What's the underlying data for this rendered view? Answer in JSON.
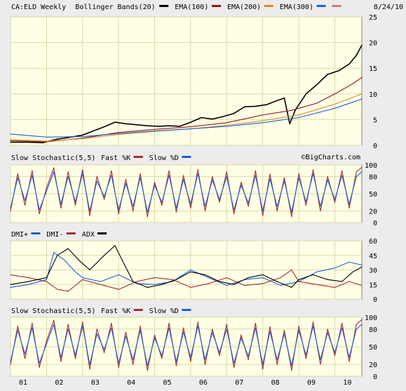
{
  "chart_data": [
    {
      "type": "line",
      "panel": "price",
      "header": {
        "symbol": "CA:ELD Weekly",
        "legend": [
          {
            "label": "Bollinger Bands(20)",
            "color": "#000000"
          },
          {
            "label": "EMA(100)",
            "color": "#8b1a1a"
          },
          {
            "label": "EMA(200)",
            "color": "#d98c1f"
          },
          {
            "label": "EMA(300)",
            "color": "#1f5fd9"
          }
        ],
        "extra_swatch_color": "#d47a7a",
        "date": "8/24/10"
      },
      "watermark": "©BigCharts.com",
      "x_ticks": [
        "01",
        "02",
        "03",
        "04",
        "05",
        "06",
        "07",
        "08",
        "09",
        "10"
      ],
      "x_range": [
        2001.0,
        2010.75
      ],
      "y_ticks": [
        0,
        5,
        10,
        15,
        20,
        25
      ],
      "ylim": [
        0,
        25
      ],
      "grid": true,
      "series": [
        {
          "key": "price",
          "color": "#000000",
          "x": [
            2001.0,
            2001.5,
            2001.9,
            2002.0,
            2002.3,
            2002.6,
            2003.0,
            2003.3,
            2003.6,
            2003.9,
            2004.2,
            2004.5,
            2004.8,
            2005.1,
            2005.4,
            2005.7,
            2006.0,
            2006.3,
            2006.6,
            2006.9,
            2007.2,
            2007.5,
            2007.8,
            2008.1,
            2008.4,
            2008.6,
            2008.75,
            2008.9,
            2009.2,
            2009.5,
            2009.8,
            2010.1,
            2010.4,
            2010.6,
            2010.75
          ],
          "y": [
            0.6,
            0.6,
            0.5,
            0.7,
            1.2,
            1.5,
            2.0,
            2.8,
            3.6,
            4.5,
            4.2,
            4.0,
            3.8,
            3.7,
            3.8,
            3.7,
            4.5,
            5.4,
            5.1,
            5.6,
            6.2,
            7.5,
            7.6,
            7.9,
            8.7,
            9.2,
            4.2,
            6.8,
            10.0,
            11.8,
            13.8,
            14.5,
            15.8,
            17.5,
            19.5
          ]
        },
        {
          "key": "ema100",
          "color": "#8b1a1a",
          "x": [
            2001.0,
            2002.0,
            2003.0,
            2004.0,
            2005.0,
            2006.0,
            2007.0,
            2008.0,
            2008.8,
            2009.5,
            2010.0,
            2010.5,
            2010.75
          ],
          "y": [
            0.9,
            0.7,
            1.4,
            2.5,
            3.1,
            3.6,
            4.4,
            5.9,
            6.8,
            8.2,
            10.0,
            12.0,
            13.2
          ]
        },
        {
          "key": "ema200",
          "color": "#d98c1f",
          "x": [
            2001.0,
            2002.0,
            2003.0,
            2004.0,
            2005.0,
            2006.0,
            2007.0,
            2008.0,
            2009.0,
            2010.0,
            2010.75
          ],
          "y": [
            1.1,
            0.8,
            1.3,
            2.1,
            2.7,
            3.2,
            3.9,
            4.8,
            5.9,
            8.0,
            10.0
          ]
        },
        {
          "key": "ema300",
          "color": "#1f5fd9",
          "x": [
            2001.0,
            2002.0,
            2003.0,
            2004.0,
            2005.0,
            2006.0,
            2007.0,
            2008.0,
            2009.0,
            2010.0,
            2010.75
          ],
          "y": [
            2.2,
            1.6,
            1.7,
            2.3,
            2.8,
            3.2,
            3.7,
            4.4,
            5.4,
            7.2,
            9.0
          ]
        }
      ]
    },
    {
      "type": "line",
      "panel": "stoch1",
      "header": {
        "title": "Slow Stochastic(5,5)",
        "legend": [
          {
            "label": "Fast %K",
            "color": "#a03030"
          },
          {
            "label": "Slow %D",
            "color": "#1f5fd9"
          }
        ]
      },
      "y_ticks": [
        0,
        20,
        50,
        80,
        100
      ],
      "ylim": [
        0,
        100
      ],
      "grid": true,
      "series": [
        {
          "key": "k",
          "color": "#a03030",
          "x": [
            2001.0,
            2001.2,
            2001.4,
            2001.6,
            2001.8,
            2002.0,
            2002.2,
            2002.4,
            2002.6,
            2002.8,
            2003.0,
            2003.2,
            2003.4,
            2003.6,
            2003.8,
            2004.0,
            2004.2,
            2004.4,
            2004.6,
            2004.8,
            2005.0,
            2005.2,
            2005.4,
            2005.6,
            2005.8,
            2006.0,
            2006.2,
            2006.4,
            2006.6,
            2006.8,
            2007.0,
            2007.2,
            2007.4,
            2007.6,
            2007.8,
            2008.0,
            2008.2,
            2008.4,
            2008.6,
            2008.8,
            2009.0,
            2009.2,
            2009.4,
            2009.6,
            2009.8,
            2010.0,
            2010.2,
            2010.4,
            2010.6,
            2010.75
          ],
          "y": [
            20,
            85,
            30,
            90,
            15,
            60,
            95,
            25,
            88,
            30,
            92,
            12,
            80,
            40,
            90,
            15,
            75,
            20,
            85,
            10,
            70,
            30,
            90,
            18,
            82,
            25,
            92,
            20,
            80,
            35,
            88,
            15,
            70,
            28,
            90,
            12,
            84,
            20,
            78,
            10,
            85,
            30,
            92,
            20,
            80,
            35,
            90,
            25,
            88,
            96
          ]
        },
        {
          "key": "d",
          "color": "#1f5fd9",
          "x": [
            2001.0,
            2001.2,
            2001.4,
            2001.6,
            2001.8,
            2002.0,
            2002.2,
            2002.4,
            2002.6,
            2002.8,
            2003.0,
            2003.2,
            2003.4,
            2003.6,
            2003.8,
            2004.0,
            2004.2,
            2004.4,
            2004.6,
            2004.8,
            2005.0,
            2005.2,
            2005.4,
            2005.6,
            2005.8,
            2006.0,
            2006.2,
            2006.4,
            2006.6,
            2006.8,
            2007.0,
            2007.2,
            2007.4,
            2007.6,
            2007.8,
            2008.0,
            2008.2,
            2008.4,
            2008.6,
            2008.8,
            2009.0,
            2009.2,
            2009.4,
            2009.6,
            2009.8,
            2010.0,
            2010.2,
            2010.4,
            2010.6,
            2010.75
          ],
          "y": [
            25,
            78,
            38,
            82,
            22,
            55,
            88,
            32,
            80,
            36,
            85,
            20,
            72,
            45,
            82,
            22,
            68,
            28,
            78,
            18,
            65,
            35,
            82,
            25,
            75,
            32,
            85,
            28,
            74,
            40,
            80,
            22,
            65,
            34,
            82,
            20,
            76,
            28,
            72,
            18,
            78,
            36,
            85,
            28,
            74,
            40,
            82,
            32,
            80,
            88
          ]
        }
      ]
    },
    {
      "type": "line",
      "panel": "dmi",
      "header": {
        "legend": [
          {
            "label": "DMI+",
            "color": "#1f5fd9"
          },
          {
            "label": "DMI-",
            "color": "#a03030"
          },
          {
            "label": "ADX",
            "color": "#000000"
          }
        ]
      },
      "y_ticks": [
        0,
        15,
        30,
        45,
        60
      ],
      "ylim": [
        0,
        60
      ],
      "grid": true,
      "series": [
        {
          "key": "dmi_plus",
          "color": "#1f5fd9",
          "x": [
            2001.0,
            2001.5,
            2002.0,
            2002.2,
            2002.5,
            2002.8,
            2003.0,
            2003.5,
            2004.0,
            2004.5,
            2005.0,
            2005.5,
            2006.0,
            2006.5,
            2007.0,
            2007.5,
            2008.0,
            2008.5,
            2009.0,
            2009.5,
            2010.0,
            2010.4,
            2010.75
          ],
          "y": [
            12,
            15,
            20,
            48,
            40,
            28,
            22,
            18,
            25,
            16,
            15,
            18,
            30,
            22,
            14,
            20,
            22,
            14,
            18,
            28,
            32,
            38,
            35
          ]
        },
        {
          "key": "dmi_minus",
          "color": "#a03030",
          "x": [
            2001.0,
            2001.5,
            2002.0,
            2002.3,
            2002.6,
            2003.0,
            2003.5,
            2004.0,
            2004.5,
            2005.0,
            2005.5,
            2006.0,
            2006.5,
            2007.0,
            2007.5,
            2008.0,
            2008.5,
            2008.8,
            2009.0,
            2009.5,
            2010.0,
            2010.4,
            2010.75
          ],
          "y": [
            25,
            22,
            18,
            10,
            8,
            20,
            15,
            10,
            18,
            22,
            20,
            12,
            16,
            22,
            14,
            16,
            22,
            30,
            18,
            15,
            12,
            18,
            14
          ]
        },
        {
          "key": "adx",
          "color": "#000000",
          "x": [
            2001.0,
            2001.5,
            2002.0,
            2002.3,
            2002.6,
            2002.9,
            2003.2,
            2003.6,
            2003.9,
            2004.1,
            2004.4,
            2004.8,
            2005.2,
            2005.6,
            2006.0,
            2006.4,
            2006.8,
            2007.2,
            2007.6,
            2008.0,
            2008.4,
            2008.8,
            2009.0,
            2009.4,
            2009.8,
            2010.2,
            2010.5,
            2010.75
          ],
          "y": [
            15,
            18,
            22,
            45,
            52,
            40,
            30,
            45,
            55,
            40,
            18,
            12,
            15,
            20,
            28,
            25,
            18,
            15,
            22,
            25,
            18,
            12,
            20,
            25,
            20,
            18,
            28,
            33
          ]
        }
      ]
    },
    {
      "type": "line",
      "panel": "stoch2",
      "header": {
        "title": "Slow Stochastic(5,5)",
        "legend": [
          {
            "label": "Fast %K",
            "color": "#a03030"
          },
          {
            "label": "Slow %D",
            "color": "#1f5fd9"
          }
        ]
      },
      "y_ticks": [
        0,
        20,
        50,
        80,
        100
      ],
      "ylim": [
        0,
        100
      ],
      "grid": true,
      "series": [
        {
          "key": "k",
          "color": "#a03030",
          "x": [
            2001.0,
            2001.2,
            2001.4,
            2001.6,
            2001.8,
            2002.0,
            2002.2,
            2002.4,
            2002.6,
            2002.8,
            2003.0,
            2003.2,
            2003.4,
            2003.6,
            2003.8,
            2004.0,
            2004.2,
            2004.4,
            2004.6,
            2004.8,
            2005.0,
            2005.2,
            2005.4,
            2005.6,
            2005.8,
            2006.0,
            2006.2,
            2006.4,
            2006.6,
            2006.8,
            2007.0,
            2007.2,
            2007.4,
            2007.6,
            2007.8,
            2008.0,
            2008.2,
            2008.4,
            2008.6,
            2008.8,
            2009.0,
            2009.2,
            2009.4,
            2009.6,
            2009.8,
            2010.0,
            2010.2,
            2010.4,
            2010.6,
            2010.75
          ],
          "y": [
            20,
            85,
            30,
            90,
            15,
            60,
            95,
            25,
            88,
            30,
            92,
            12,
            80,
            40,
            90,
            15,
            75,
            20,
            85,
            10,
            70,
            30,
            90,
            18,
            82,
            25,
            92,
            20,
            80,
            35,
            88,
            15,
            70,
            28,
            90,
            12,
            84,
            20,
            78,
            10,
            85,
            30,
            92,
            20,
            80,
            35,
            90,
            25,
            88,
            96
          ]
        },
        {
          "key": "d",
          "color": "#1f5fd9",
          "x": [
            2001.0,
            2001.2,
            2001.4,
            2001.6,
            2001.8,
            2002.0,
            2002.2,
            2002.4,
            2002.6,
            2002.8,
            2003.0,
            2003.2,
            2003.4,
            2003.6,
            2003.8,
            2004.0,
            2004.2,
            2004.4,
            2004.6,
            2004.8,
            2005.0,
            2005.2,
            2005.4,
            2005.6,
            2005.8,
            2006.0,
            2006.2,
            2006.4,
            2006.6,
            2006.8,
            2007.0,
            2007.2,
            2007.4,
            2007.6,
            2007.8,
            2008.0,
            2008.2,
            2008.4,
            2008.6,
            2008.8,
            2009.0,
            2009.2,
            2009.4,
            2009.6,
            2009.8,
            2010.0,
            2010.2,
            2010.4,
            2010.6,
            2010.75
          ],
          "y": [
            25,
            78,
            38,
            82,
            22,
            55,
            88,
            32,
            80,
            36,
            85,
            20,
            72,
            45,
            82,
            22,
            68,
            28,
            78,
            18,
            65,
            35,
            82,
            25,
            75,
            32,
            85,
            28,
            74,
            40,
            80,
            22,
            65,
            34,
            82,
            20,
            76,
            28,
            72,
            18,
            78,
            36,
            85,
            28,
            74,
            40,
            82,
            32,
            80,
            88
          ]
        }
      ]
    }
  ]
}
